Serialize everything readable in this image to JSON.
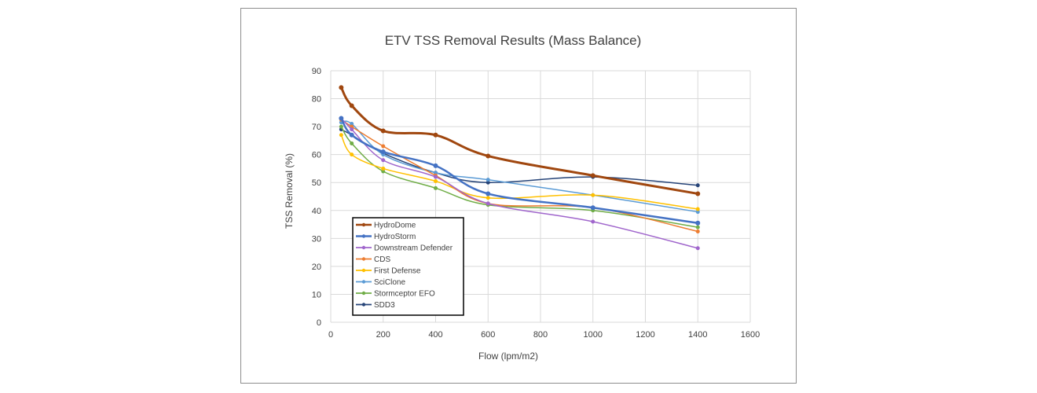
{
  "chart_data": {
    "type": "line",
    "title": "ETV TSS Removal Results (Mass Balance)",
    "xlabel": "Flow (lpm/m2)",
    "ylabel": "TSS Removal (%)",
    "xlim": [
      0,
      1600
    ],
    "ylim": [
      0,
      90
    ],
    "xticks": [
      0,
      200,
      400,
      600,
      800,
      1000,
      1200,
      1400,
      1600
    ],
    "yticks": [
      0,
      10,
      20,
      30,
      40,
      50,
      60,
      70,
      80,
      90
    ],
    "grid": true,
    "legend_position": "bottom-left",
    "series": [
      {
        "name": "HydroDome",
        "color": "#a0470f",
        "width": 3,
        "x": [
          40,
          80,
          200,
          400,
          600,
          1000,
          1400
        ],
        "y": [
          84,
          77.5,
          68.5,
          67,
          59.5,
          52.5,
          46
        ]
      },
      {
        "name": "HydroStorm",
        "color": "#4472c4",
        "width": 2.5,
        "x": [
          40,
          80,
          200,
          400,
          600,
          1000,
          1400
        ],
        "y": [
          73,
          67,
          61,
          56,
          46,
          41,
          35.5
        ]
      },
      {
        "name": "Downstream Defender",
        "color": "#a066cc",
        "width": 1.5,
        "x": [
          40,
          80,
          200,
          400,
          600,
          1000,
          1400
        ],
        "y": [
          73,
          69,
          58,
          52,
          42.5,
          36,
          26.5
        ]
      },
      {
        "name": "CDS",
        "color": "#ed7d31",
        "width": 1.5,
        "x": [
          40,
          80,
          200,
          400,
          600,
          1000,
          1400
        ],
        "y": [
          72.5,
          70,
          63,
          52.5,
          42.5,
          41,
          32.5
        ]
      },
      {
        "name": "First Defense",
        "color": "#ffc000",
        "width": 1.5,
        "x": [
          40,
          80,
          200,
          400,
          600,
          1000,
          1400
        ],
        "y": [
          67,
          60,
          55,
          50.5,
          44.5,
          45.5,
          40.5
        ]
      },
      {
        "name": "SciClone",
        "color": "#5b9bd5",
        "width": 1.5,
        "x": [
          40,
          80,
          200,
          400,
          600,
          1000,
          1400
        ],
        "y": [
          71.5,
          71,
          60,
          53.5,
          51,
          45.5,
          39.5
        ]
      },
      {
        "name": "Stormceptor EFO",
        "color": "#70ad47",
        "width": 1.5,
        "x": [
          40,
          80,
          200,
          400,
          600,
          1000,
          1400
        ],
        "y": [
          70,
          64,
          54,
          48,
          42,
          40,
          34
        ]
      },
      {
        "name": "SDD3",
        "color": "#264478",
        "width": 1.5,
        "x": [
          40,
          80,
          200,
          400,
          600,
          1000,
          1400
        ],
        "y": [
          69,
          67,
          60.5,
          53.5,
          50,
          52,
          49
        ]
      }
    ]
  }
}
